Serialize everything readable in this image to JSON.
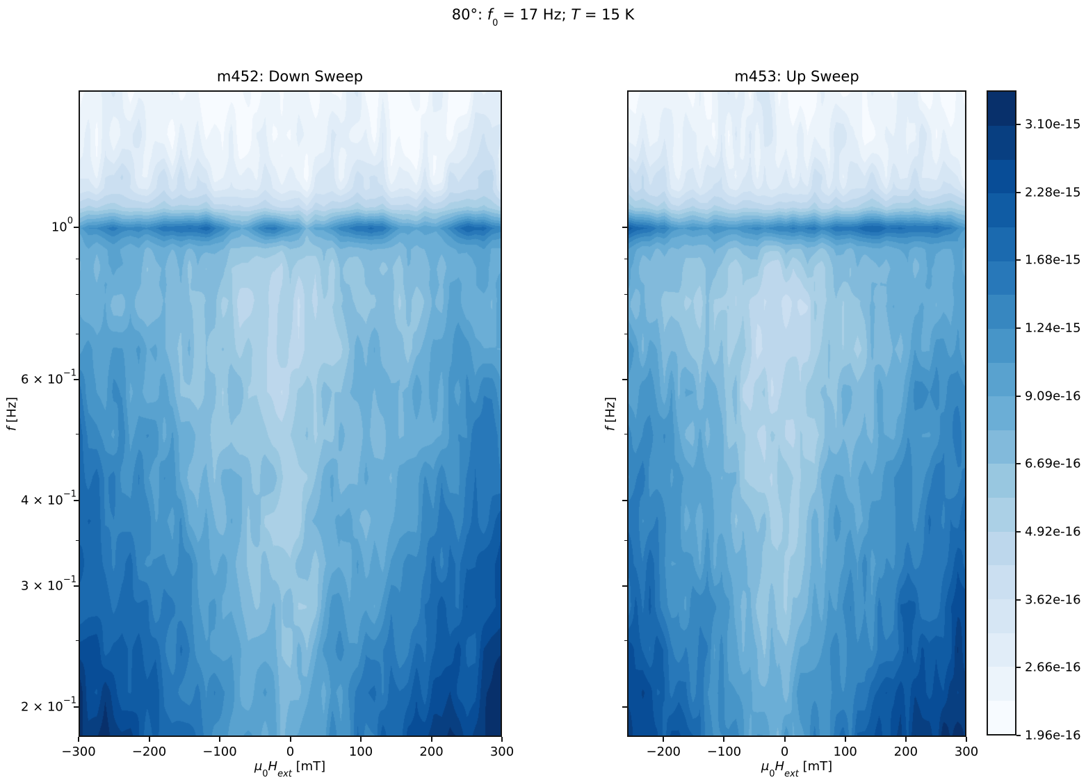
{
  "suptitle": {
    "num": "80",
    "deg": "°",
    "colon": ": ",
    "f_var": "f",
    "f_sub": "0",
    "mid": " = 17 Hz; ",
    "T_var": "T",
    "end": " = 15 K"
  },
  "chart_data": {
    "type": "filled_contour_heatmap",
    "value_scale": "log",
    "vmin": "1.96e-16",
    "vmax": "3.62e-15",
    "n_bands": 19,
    "colormap": {
      "name": "Blues",
      "anchor_positions": [
        0,
        0.125,
        0.25,
        0.375,
        0.5,
        0.625,
        0.75,
        0.875,
        1.0
      ],
      "anchor_colors": [
        "#f7fbff",
        "#deebf7",
        "#c6dbef",
        "#9ecae1",
        "#6baed6",
        "#4292c6",
        "#2171b5",
        "#08519c",
        "#08306b"
      ]
    },
    "colorbar": {
      "tick_labels_bottom_to_top": [
        "1.96e-16",
        "2.66e-16",
        "3.62e-16",
        "4.92e-16",
        "6.69e-16",
        "9.09e-16",
        "1.24e-15",
        "1.68e-15",
        "2.28e-15",
        "3.10e-15"
      ],
      "bands_per_tick": 2
    },
    "y_axis": {
      "label_f": "f",
      "label_unit": " [Hz]",
      "scale": "log",
      "range_hz": [
        0.181,
        1.585
      ],
      "major_ticks": [
        {
          "prefix": "",
          "mantissa": "10",
          "exponent": "0",
          "value": 1.0
        },
        {
          "prefix": "6 × ",
          "mantissa": "10",
          "exponent": "−1",
          "value": 0.6
        },
        {
          "prefix": "4 × ",
          "mantissa": "10",
          "exponent": "−1",
          "value": 0.4
        },
        {
          "prefix": "3 × ",
          "mantissa": "10",
          "exponent": "−1",
          "value": 0.3
        },
        {
          "prefix": "2 × ",
          "mantissa": "10",
          "exponent": "−1",
          "value": 0.2
        }
      ],
      "minor_ticks": [
        0.9,
        0.8,
        0.7,
        0.5,
        0.35,
        0.25
      ]
    },
    "x_axis": {
      "label": {
        "mu": "μ",
        "sub0": "0",
        "H": "H",
        "subext": "ext",
        "unit": " [mT]"
      }
    },
    "subplots": [
      {
        "id": "m452",
        "title": "m452: Down Sweep",
        "x_range_mt": [
          -300,
          300
        ],
        "x_ticks": [
          {
            "label": "−300",
            "value": -300
          },
          {
            "label": "−200",
            "value": -200
          },
          {
            "label": "−100",
            "value": -100
          },
          {
            "label": "0",
            "value": 0
          },
          {
            "label": "100",
            "value": 100
          },
          {
            "label": "200",
            "value": 200
          },
          {
            "label": "300",
            "value": 300
          }
        ],
        "seed": 11
      },
      {
        "id": "m453",
        "title": "m453: Up Sweep",
        "x_range_mt": [
          -260,
          300
        ],
        "x_ticks": [
          {
            "label": "−200",
            "value": -200
          },
          {
            "label": "−100",
            "value": -100
          },
          {
            "label": "0",
            "value": 0
          },
          {
            "label": "100",
            "value": 100
          },
          {
            "label": "200",
            "value": 200
          },
          {
            "label": "300",
            "value": 300
          }
        ],
        "seed": 29
      }
    ],
    "field_model": {
      "note": "band index profiles used to recreate the depicted PSD field: dark resonance band at f ≈ 1 Hz, light region above it, V-shaped light valley centred near 0 mT, darkening toward low f and large |H|",
      "center_mt": -12,
      "edge_exponent": 0.85,
      "base_profile": [
        [
          0,
          1.0
        ],
        [
          0.1,
          1.6
        ],
        [
          0.15,
          2.9
        ],
        [
          0.18,
          5.2
        ],
        [
          0.199,
          8.6
        ],
        [
          0.212,
          11.6
        ],
        [
          0.227,
          9.4
        ],
        [
          0.245,
          7.4
        ],
        [
          0.275,
          6.0
        ],
        [
          0.325,
          5.0
        ],
        [
          0.42,
          5.3
        ],
        [
          0.55,
          5.9
        ],
        [
          0.7,
          6.7
        ],
        [
          0.85,
          7.6
        ],
        [
          1.0,
          9.0
        ]
      ],
      "edge_profile": [
        [
          0,
          0.8
        ],
        [
          0.15,
          1.2
        ],
        [
          0.215,
          1.6
        ],
        [
          0.3,
          5.0
        ],
        [
          0.45,
          6.9
        ],
        [
          0.6,
          7.7
        ],
        [
          0.8,
          8.7
        ],
        [
          1.0,
          9.4
        ]
      ],
      "noise_amp_profile": [
        [
          0,
          1.7
        ],
        [
          0.13,
          1.7
        ],
        [
          0.165,
          1.0
        ],
        [
          0.19,
          0.75
        ],
        [
          0.25,
          0.9
        ],
        [
          0.33,
          1.3
        ],
        [
          1.0,
          1.35
        ]
      ],
      "band_blob": {
        "u": 0.212,
        "sigma": 0.02,
        "amp": 2.2
      },
      "octaves": [
        {
          "cols_per_600mt": 50,
          "rows": 15,
          "amp": 1.0
        },
        {
          "cols_per_600mt": 13,
          "rows": 5,
          "amp": 0.65
        }
      ]
    }
  }
}
